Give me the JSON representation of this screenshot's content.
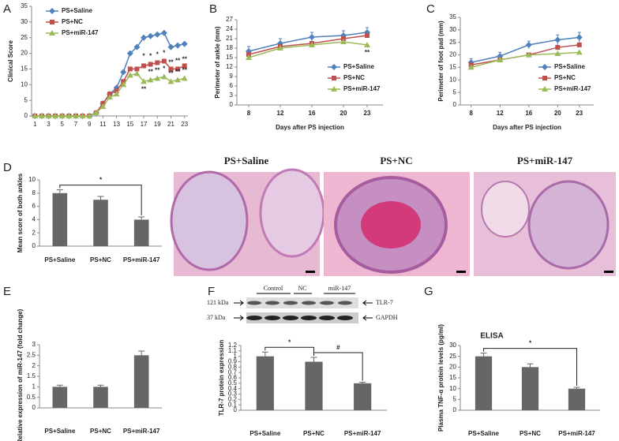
{
  "chart_data": [
    {
      "type": "line",
      "panel_label": "A",
      "ylabel": "Clinical Score",
      "x": [
        1,
        2,
        3,
        4,
        5,
        6,
        7,
        8,
        9,
        10,
        11,
        12,
        13,
        14,
        15,
        16,
        17,
        18,
        19,
        20,
        21,
        22,
        23
      ],
      "xlim": [
        0.5,
        23.5
      ],
      "xticks": [
        1,
        3,
        5,
        7,
        9,
        11,
        13,
        15,
        17,
        19,
        21,
        23
      ],
      "ylim": [
        0,
        35
      ],
      "yticks": [
        0,
        5,
        10,
        15,
        20,
        25,
        30,
        35
      ],
      "legend": "upper left",
      "series": [
        {
          "name": "PS+Saline",
          "color": "#4f81bd",
          "marker": "diamond",
          "values": [
            0,
            0,
            0,
            0,
            0,
            0,
            0,
            0,
            0,
            1,
            4,
            7,
            9,
            14,
            20,
            22,
            25,
            25.5,
            26,
            26.5,
            22,
            22.5,
            23
          ]
        },
        {
          "name": "PS+NC",
          "color": "#c0504d",
          "marker": "square",
          "values": [
            0,
            0,
            0,
            0,
            0,
            0,
            0,
            0,
            0,
            1,
            4,
            7,
            8,
            11,
            15,
            15,
            16,
            16.5,
            17,
            17.5,
            15,
            15,
            16
          ]
        },
        {
          "name": "PS+miR-147",
          "color": "#9bbb59",
          "marker": "triangle",
          "values": [
            0,
            0,
            0,
            0,
            0,
            0,
            0,
            0,
            0,
            1,
            3,
            6,
            7,
            10,
            13,
            13.5,
            11,
            11.5,
            12,
            12.5,
            11,
            11.5,
            12
          ]
        }
      ],
      "annotations": [
        {
          "text": "**",
          "x": 17,
          "y": 8.5
        },
        {
          "text": "*",
          "x": 17,
          "y": 19
        },
        {
          "text": "*",
          "x": 18,
          "y": 19
        },
        {
          "text": "*",
          "x": 19,
          "y": 19.5
        },
        {
          "text": "*",
          "x": 20,
          "y": 20
        },
        {
          "text": "**",
          "x": 21,
          "y": 17
        },
        {
          "text": "**",
          "x": 22,
          "y": 17.5
        },
        {
          "text": "**",
          "x": 23,
          "y": 18
        },
        {
          "text": "**",
          "x": 18,
          "y": 14
        },
        {
          "text": "**",
          "x": 19,
          "y": 14.5
        },
        {
          "text": "*",
          "x": 20,
          "y": 15
        },
        {
          "text": "**",
          "x": 21,
          "y": 13.5
        },
        {
          "text": "**",
          "x": 22,
          "y": 14
        },
        {
          "text": "**",
          "x": 23,
          "y": 14.5
        }
      ]
    },
    {
      "type": "line",
      "panel_label": "B",
      "ylabel": "Perimeter of ankle (mm)",
      "xlabel": "Days after PS injection",
      "x": [
        8,
        12,
        16,
        20,
        23
      ],
      "xlim": [
        6.5,
        25
      ],
      "xticks": [
        8,
        12,
        16,
        20,
        23
      ],
      "ylim": [
        0,
        27
      ],
      "yticks": [
        0,
        3,
        6,
        9,
        12,
        15,
        18,
        21,
        24,
        27
      ],
      "legend": "lower right",
      "series": [
        {
          "name": "PS+Saline",
          "color": "#4f81bd",
          "marker": "diamond",
          "values": [
            17,
            19.5,
            21.5,
            22,
            23
          ],
          "errors": [
            1.5,
            1.5,
            1.5,
            1.5,
            1.5
          ]
        },
        {
          "name": "PS+NC",
          "color": "#c0504d",
          "marker": "square",
          "values": [
            16,
            18.5,
            19.5,
            21,
            22
          ]
        },
        {
          "name": "PS+miR-147",
          "color": "#9bbb59",
          "marker": "triangle",
          "values": [
            15,
            18,
            19,
            20,
            19
          ]
        }
      ],
      "annotations": [
        {
          "text": "**",
          "x": 23,
          "y": 16.5
        }
      ]
    },
    {
      "type": "line",
      "panel_label": "C",
      "ylabel": "Perimeter of foot pad (mm)",
      "xlabel": "Days after PS injection",
      "x": [
        8,
        12,
        16,
        20,
        23
      ],
      "xlim": [
        6.5,
        25
      ],
      "xticks": [
        8,
        12,
        16,
        20,
        23
      ],
      "ylim": [
        0,
        35
      ],
      "yticks": [
        0,
        5,
        10,
        15,
        20,
        25,
        30,
        35
      ],
      "legend": "lower right",
      "series": [
        {
          "name": "PS+Saline",
          "color": "#4f81bd",
          "marker": "diamond",
          "values": [
            17,
            19.5,
            24,
            26,
            27
          ],
          "errors": [
            1.5,
            1.5,
            1.5,
            2,
            2
          ]
        },
        {
          "name": "PS+NC",
          "color": "#c0504d",
          "marker": "square",
          "values": [
            16,
            18,
            20,
            23,
            24
          ]
        },
        {
          "name": "PS+miR-147",
          "color": "#9bbb59",
          "marker": "triangle",
          "values": [
            15,
            18,
            20,
            20.5,
            21
          ]
        }
      ]
    },
    {
      "type": "bar",
      "panel_label": "D",
      "ylabel": "Mean score of both ankles",
      "color": "#666666",
      "categories": [
        "PS+Saline",
        "PS+NC",
        "PS+miR-147"
      ],
      "values": [
        8,
        7,
        4
      ],
      "errors": [
        0.5,
        0.5,
        0.4
      ],
      "ylim": [
        0,
        10
      ],
      "yticks": [
        0,
        2,
        4,
        6,
        8,
        10
      ],
      "significance": [
        {
          "text": "*",
          "from": 0,
          "to": 2
        }
      ]
    },
    {
      "type": "bar",
      "panel_label": "E",
      "ylabel": "Relative expression of miR-147 (fold change)",
      "color": "#666666",
      "categories": [
        "PS+Saline",
        "PS+NC",
        "PS+miR-147"
      ],
      "values": [
        1,
        1,
        2.5
      ],
      "errors": [
        0.08,
        0.08,
        0.2
      ],
      "ylim": [
        0,
        3
      ],
      "yticks": [
        0,
        0.5,
        1,
        1.5,
        2,
        2.5,
        3
      ]
    },
    {
      "type": "bar",
      "panel_label": "F",
      "ylabel": "TLR-7 protein expression",
      "color": "#666666",
      "categories": [
        "PS+Saline",
        "PS+NC",
        "PS+miR-147"
      ],
      "values": [
        1,
        0.9,
        0.5
      ],
      "errors": [
        0.08,
        0.08,
        0.02
      ],
      "ylim": [
        0,
        1.2
      ],
      "yticks": [
        0,
        0.1,
        0.2,
        0.3,
        0.4,
        0.5,
        0.6,
        0.7,
        0.8,
        0.9,
        1,
        1.1,
        1.2
      ],
      "significance": [
        {
          "text": "*",
          "from": 0,
          "to": 1
        },
        {
          "text": "#",
          "from": 1,
          "to": 2
        }
      ]
    },
    {
      "type": "bar",
      "panel_label": "G",
      "title": "ELISA",
      "ylabel": "Plasma TNF-α protein levels (pg/ml)",
      "color": "#666666",
      "categories": [
        "PS+Saline",
        "PS+NC",
        "PS+miR-147"
      ],
      "values": [
        25,
        20,
        10
      ],
      "errors": [
        1.5,
        1.5,
        0.6
      ],
      "ylim": [
        0,
        30
      ],
      "yticks": [
        0,
        5,
        10,
        15,
        20,
        25,
        30
      ],
      "significance": [
        {
          "text": "*",
          "from": 0,
          "to": 2
        }
      ]
    }
  ],
  "histology": {
    "titles": [
      "PS+Saline",
      "PS+NC",
      "PS+miR-147"
    ]
  },
  "western_blot": {
    "groups": [
      "Control",
      "NC",
      "miR-147"
    ],
    "sizes": [
      "121 kDa",
      "37 kDa"
    ],
    "proteins": [
      "TLR-7",
      "GAPDH"
    ]
  }
}
